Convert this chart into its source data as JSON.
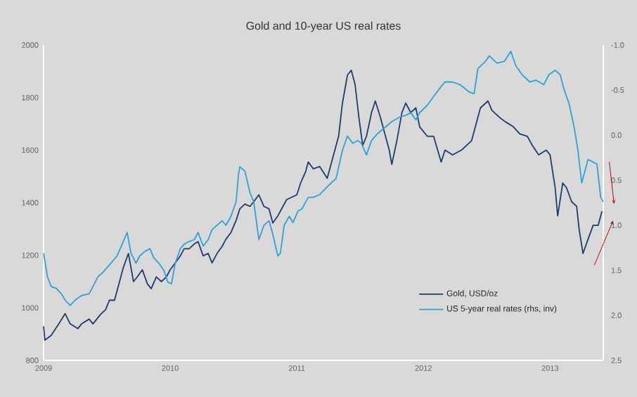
{
  "chart_data": {
    "type": "line",
    "title": "Gold and 10-year US real rates",
    "xlim": [
      2009,
      2013.42
    ],
    "xticks": [
      2009,
      2010,
      2011,
      2012,
      2013
    ],
    "ylim": [
      800,
      2000
    ],
    "yticks": [
      800,
      1000,
      1200,
      1400,
      1600,
      1800,
      2000
    ],
    "y2lim": [
      2.5,
      -1.0
    ],
    "y2ticks": [
      {
        "value": -1.0,
        "label": "-1.0"
      },
      {
        "value": -0.5,
        "label": "-0.5"
      },
      {
        "value": 0.0,
        "label": "0.0"
      },
      {
        "value": 0.5,
        "label": "0.5"
      },
      {
        "value": 1.0,
        "label": "1.0"
      },
      {
        "value": 1.5,
        "label": "1.5"
      },
      {
        "value": 2.0,
        "label": "2.0"
      },
      {
        "value": 2.5,
        "label": "2.5"
      }
    ],
    "legend": "bottom right",
    "series": [
      {
        "name": "Gold, USD/oz",
        "color": "#1f3a6e",
        "x": [
          2009.0,
          2009.01,
          2009.06,
          2009.12,
          2009.17,
          2009.21,
          2009.27,
          2009.3,
          2009.36,
          2009.39,
          2009.45,
          2009.49,
          2009.52,
          2009.56,
          2009.6,
          2009.63,
          2009.67,
          2009.71,
          2009.74,
          2009.78,
          2009.82,
          2009.85,
          2009.89,
          2009.93,
          2009.97,
          2010.0,
          2010.04,
          2010.08,
          2010.11,
          2010.15,
          2010.19,
          2010.22,
          2010.26,
          2010.3,
          2010.33,
          2010.37,
          2010.41,
          2010.44,
          2010.48,
          2010.52,
          2010.55,
          2010.59,
          2010.63,
          2010.66,
          2010.7,
          2010.74,
          2010.78,
          2010.81,
          2010.85,
          2010.89,
          2010.92,
          2010.96,
          2011.0,
          2011.03,
          2011.07,
          2011.09,
          2011.13,
          2011.18,
          2011.24,
          2011.29,
          2011.33,
          2011.36,
          2011.4,
          2011.43,
          2011.46,
          2011.49,
          2011.52,
          2011.55,
          2011.59,
          2011.62,
          2011.66,
          2011.7,
          2011.73,
          2011.75,
          2011.79,
          2011.83,
          2011.86,
          2011.9,
          2011.94,
          2011.97,
          2012.03,
          2012.08,
          2012.14,
          2012.17,
          2012.23,
          2012.3,
          2012.38,
          2012.41,
          2012.45,
          2012.51,
          2012.54,
          2012.6,
          2012.65,
          2012.71,
          2012.76,
          2012.82,
          2012.86,
          2012.91,
          2012.97,
          2013.0,
          2013.04,
          2013.06,
          2013.1,
          2013.13,
          2013.17,
          2013.21,
          2013.23,
          2013.26,
          2013.3,
          2013.34,
          2013.38,
          2013.41
        ],
        "values": [
          930,
          877,
          895,
          939,
          978,
          939,
          921,
          939,
          957,
          939,
          975,
          993,
          1029,
          1029,
          1100,
          1154,
          1207,
          1100,
          1118,
          1145,
          1091,
          1073,
          1118,
          1100,
          1118,
          1145,
          1171,
          1198,
          1225,
          1225,
          1243,
          1252,
          1198,
          1207,
          1171,
          1207,
          1234,
          1261,
          1287,
          1332,
          1377,
          1395,
          1386,
          1404,
          1430,
          1386,
          1377,
          1323,
          1350,
          1386,
          1412,
          1421,
          1430,
          1475,
          1519,
          1555,
          1529,
          1538,
          1493,
          1582,
          1653,
          1779,
          1886,
          1904,
          1850,
          1725,
          1618,
          1653,
          1743,
          1787,
          1725,
          1653,
          1600,
          1546,
          1636,
          1743,
          1779,
          1743,
          1761,
          1689,
          1653,
          1653,
          1555,
          1600,
          1582,
          1600,
          1636,
          1689,
          1761,
          1787,
          1752,
          1725,
          1707,
          1689,
          1662,
          1653,
          1618,
          1582,
          1600,
          1582,
          1457,
          1350,
          1475,
          1457,
          1404,
          1386,
          1297,
          1207,
          1261,
          1314,
          1314,
          1368
        ]
      },
      {
        "name": "US 5-year real rates (rhs, inv)",
        "color": "#29a3dc",
        "axis": "y2",
        "x": [
          2009.0,
          2009.03,
          2009.06,
          2009.1,
          2009.14,
          2009.17,
          2009.21,
          2009.25,
          2009.3,
          2009.36,
          2009.39,
          2009.43,
          2009.47,
          2009.52,
          2009.58,
          2009.63,
          2009.66,
          2009.69,
          2009.73,
          2009.76,
          2009.8,
          2009.84,
          2009.87,
          2009.91,
          2009.95,
          2009.98,
          2010.01,
          2010.04,
          2010.08,
          2010.11,
          2010.15,
          2010.19,
          2010.22,
          2010.26,
          2010.3,
          2010.33,
          2010.37,
          2010.41,
          2010.44,
          2010.48,
          2010.52,
          2010.54,
          2010.55,
          2010.59,
          2010.63,
          2010.66,
          2010.7,
          2010.74,
          2010.78,
          2010.81,
          2010.85,
          2010.87,
          2010.9,
          2010.94,
          2010.97,
          2011.01,
          2011.04,
          2011.09,
          2011.13,
          2011.18,
          2011.25,
          2011.31,
          2011.36,
          2011.4,
          2011.44,
          2011.48,
          2011.51,
          2011.55,
          2011.59,
          2011.64,
          2011.7,
          2011.75,
          2011.81,
          2011.86,
          2011.9,
          2011.94,
          2011.97,
          2012.03,
          2012.08,
          2012.14,
          2012.17,
          2012.23,
          2012.29,
          2012.36,
          2012.4,
          2012.43,
          2012.49,
          2012.52,
          2012.58,
          2012.64,
          2012.69,
          2012.73,
          2012.78,
          2012.84,
          2012.89,
          2012.95,
          2012.99,
          2013.04,
          2013.08,
          2013.11,
          2013.15,
          2013.19,
          2013.22,
          2013.25,
          2013.3,
          2013.34,
          2013.37,
          2013.4,
          2013.42
        ],
        "values": [
          1.31,
          1.57,
          1.68,
          1.7,
          1.76,
          1.83,
          1.89,
          1.83,
          1.78,
          1.76,
          1.68,
          1.57,
          1.52,
          1.44,
          1.34,
          1.18,
          1.08,
          1.31,
          1.42,
          1.34,
          1.29,
          1.26,
          1.36,
          1.42,
          1.5,
          1.63,
          1.65,
          1.42,
          1.26,
          1.21,
          1.18,
          1.16,
          1.08,
          1.23,
          1.16,
          1.05,
          1.0,
          0.95,
          1.0,
          0.9,
          0.74,
          0.43,
          0.35,
          0.4,
          0.64,
          0.74,
          1.16,
          1.0,
          0.95,
          1.1,
          1.34,
          1.31,
          1.0,
          0.9,
          0.97,
          0.84,
          0.82,
          0.69,
          0.69,
          0.66,
          0.56,
          0.48,
          0.17,
          0.01,
          0.09,
          0.06,
          0.09,
          0.22,
          0.06,
          -0.02,
          -0.09,
          -0.15,
          -0.2,
          -0.22,
          -0.25,
          -0.17,
          -0.25,
          -0.33,
          -0.43,
          -0.54,
          -0.59,
          -0.59,
          -0.56,
          -0.48,
          -0.46,
          -0.74,
          -0.82,
          -0.88,
          -0.8,
          -0.82,
          -0.93,
          -0.77,
          -0.67,
          -0.59,
          -0.61,
          -0.56,
          -0.67,
          -0.72,
          -0.67,
          -0.51,
          -0.35,
          -0.09,
          0.17,
          0.53,
          0.27,
          0.3,
          0.32,
          0.69,
          0.74
        ]
      }
    ]
  }
}
